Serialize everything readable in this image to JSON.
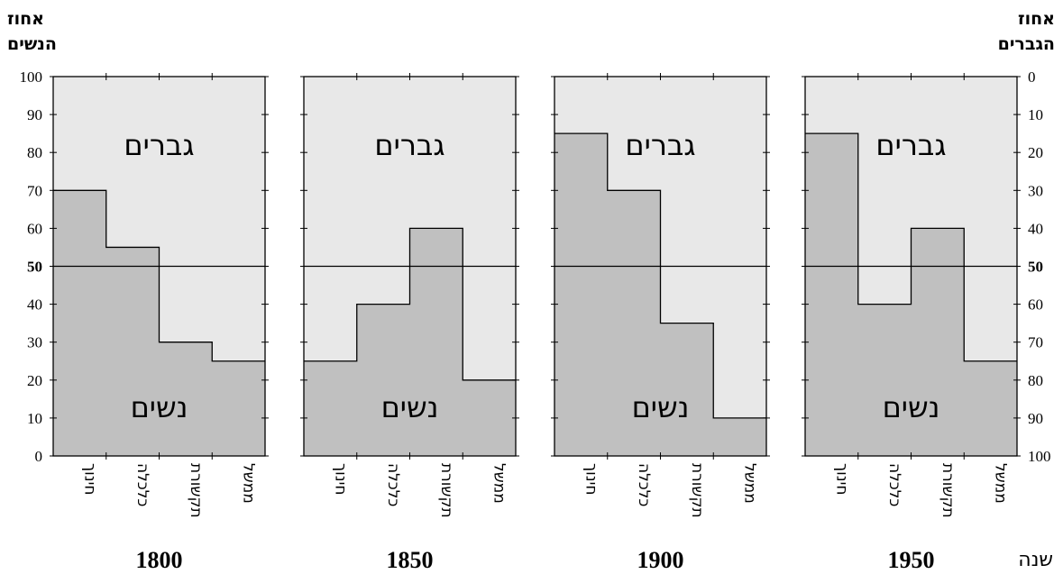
{
  "left_axis_title": [
    "אחוז",
    "הנשים"
  ],
  "right_axis_title": [
    "אחוז",
    "הגברים"
  ],
  "year_axis_label": "שנה",
  "men_label": "גברים",
  "women_label": "נשים",
  "colors": {
    "men": "#e8e8e8",
    "women": "#c0c0c0",
    "line": "#000000"
  },
  "chart_data": [
    {
      "type": "step-area",
      "year": "1800",
      "categories": [
        "חינוך",
        "כלכלה",
        "תקשורת",
        "ממשל"
      ],
      "series": [
        {
          "name": "נשים",
          "values": [
            70,
            55,
            30,
            25
          ]
        }
      ],
      "ylim": [
        0,
        100
      ],
      "yticks_left": [
        0,
        10,
        20,
        30,
        40,
        50,
        60,
        70,
        80,
        90,
        100
      ],
      "yticks_right": [
        100,
        90,
        80,
        70,
        60,
        50,
        40,
        30,
        20,
        10,
        0
      ],
      "reference_line": 50
    },
    {
      "type": "step-area",
      "year": "1850",
      "categories": [
        "חינוך",
        "כלכלה",
        "תקשורת",
        "ממשל"
      ],
      "series": [
        {
          "name": "נשים",
          "values": [
            25,
            40,
            60,
            20
          ]
        }
      ],
      "ylim": [
        0,
        100
      ],
      "reference_line": 50
    },
    {
      "type": "step-area",
      "year": "1900",
      "categories": [
        "חינוך",
        "כלכלה",
        "תקשורת",
        "ממשל"
      ],
      "series": [
        {
          "name": "נשים",
          "values": [
            85,
            70,
            35,
            10
          ]
        }
      ],
      "ylim": [
        0,
        100
      ],
      "reference_line": 50
    },
    {
      "type": "step-area",
      "year": "1950",
      "categories": [
        "חינוך",
        "כלכלה",
        "תקשורת",
        "ממשל"
      ],
      "series": [
        {
          "name": "נשים",
          "values": [
            85,
            40,
            60,
            25
          ]
        }
      ],
      "ylim": [
        0,
        100
      ],
      "reference_line": 50
    }
  ]
}
